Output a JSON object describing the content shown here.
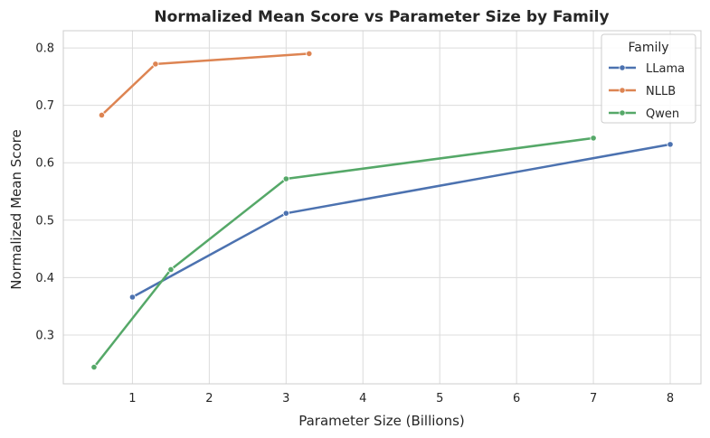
{
  "chart_data": {
    "type": "line",
    "title": "Normalized Mean Score vs Parameter Size by Family",
    "xlabel": "Parameter Size (Billions)",
    "ylabel": "Normalized Mean Score",
    "xlim": [
      0.1,
      8.4
    ],
    "ylim": [
      0.215,
      0.83
    ],
    "xticks": [
      1,
      2,
      3,
      4,
      5,
      6,
      7,
      8
    ],
    "yticks": [
      0.3,
      0.4,
      0.5,
      0.6,
      0.7,
      0.8
    ],
    "xtick_labels": [
      "1",
      "2",
      "3",
      "4",
      "5",
      "6",
      "7",
      "8"
    ],
    "ytick_labels": [
      "0.3",
      "0.4",
      "0.5",
      "0.6",
      "0.7",
      "0.8"
    ],
    "grid": true,
    "legend": {
      "title": "Family",
      "placement": "top-right"
    },
    "series": [
      {
        "name": "LLama",
        "color": "#4c72b0",
        "x": [
          1,
          3,
          8
        ],
        "y": [
          0.366,
          0.512,
          0.632
        ]
      },
      {
        "name": "NLLB",
        "color": "#dd8452",
        "x": [
          0.6,
          1.3,
          3.3
        ],
        "y": [
          0.683,
          0.772,
          0.79
        ]
      },
      {
        "name": "Qwen",
        "color": "#55a868",
        "x": [
          0.5,
          1.5,
          3,
          7
        ],
        "y": [
          0.244,
          0.414,
          0.572,
          0.643
        ]
      }
    ]
  }
}
